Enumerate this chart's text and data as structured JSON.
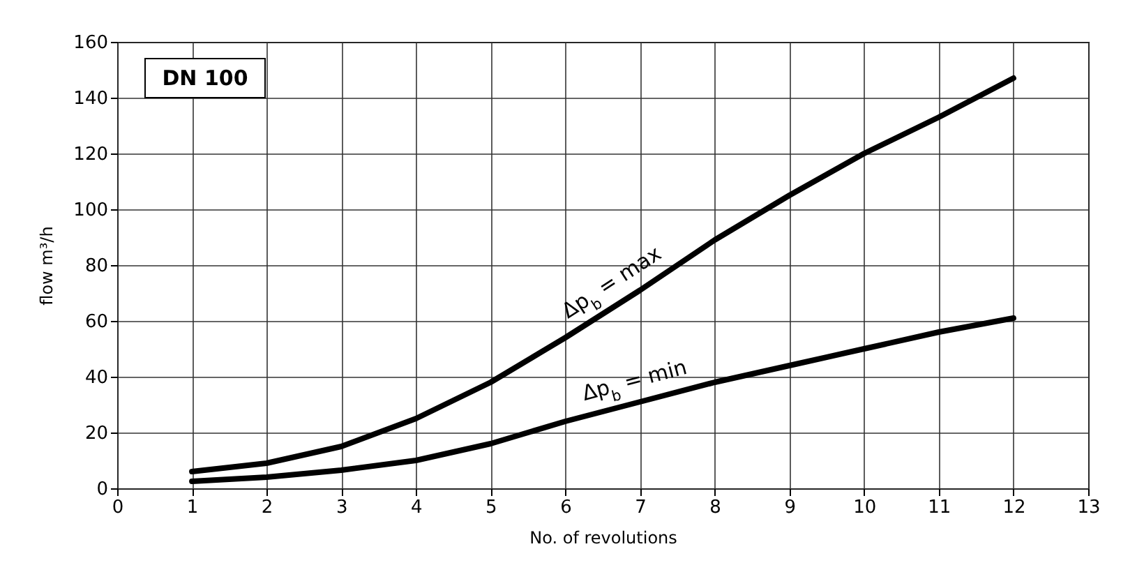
{
  "chart_data": {
    "type": "line",
    "xlabel": "No. of revolutions",
    "ylabel": "flow m³/h",
    "annotations": [
      "DN 100"
    ],
    "x": [
      1,
      2,
      3,
      4,
      5,
      6,
      7,
      8,
      9,
      10,
      11,
      12
    ],
    "series": [
      {
        "name": "Δp$_{b}$ = max",
        "color": "#000000",
        "values": [
          6,
          9,
          15,
          25,
          38,
          54,
          71,
          89,
          105,
          120,
          133,
          147
        ]
      },
      {
        "name": "Δp$_{b}$ = min",
        "color": "#000000",
        "values": [
          2.5,
          4,
          6.5,
          10,
          16,
          24,
          31,
          38,
          44,
          50,
          56,
          61
        ]
      }
    ],
    "xlim": [
      0,
      13
    ],
    "xticks": [
      0,
      1,
      2,
      3,
      4,
      5,
      6,
      7,
      8,
      9,
      10,
      11,
      12,
      13
    ],
    "ylim": [
      0,
      160
    ],
    "yticks": [
      0,
      20,
      40,
      60,
      80,
      100,
      120,
      140,
      160
    ],
    "grid": true,
    "legend": false,
    "marker": "none",
    "line_style": "solid"
  }
}
